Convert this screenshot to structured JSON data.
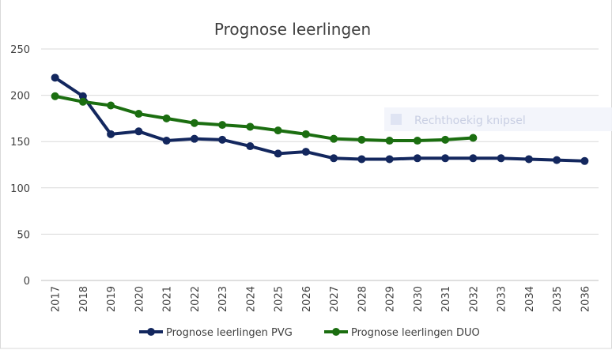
{
  "chart_data": {
    "type": "line",
    "title": "Prognose leerlingen",
    "xlabel": "",
    "ylabel": "",
    "categories": [
      "2017",
      "2018",
      "2019",
      "2020",
      "2021",
      "2022",
      "2023",
      "2024",
      "2025",
      "2026",
      "2027",
      "2028",
      "2029",
      "2030",
      "2031",
      "2032",
      "2033",
      "2034",
      "2035",
      "2036"
    ],
    "ylim": [
      0,
      250
    ],
    "yticks": [
      0,
      50,
      100,
      150,
      200,
      250
    ],
    "grid": true,
    "legend_position": "bottom",
    "series": [
      {
        "name": "Prognose leerlingen PVG",
        "color": "#13275e",
        "values": [
          219,
          199,
          158,
          161,
          151,
          153,
          152,
          145,
          137,
          139,
          132,
          131,
          131,
          132,
          132,
          132,
          132,
          131,
          130,
          129
        ]
      },
      {
        "name": "Prognose leerlingen DUO",
        "color": "#1b6e10",
        "values": [
          199,
          193,
          189,
          180,
          175,
          170,
          168,
          166,
          162,
          158,
          153,
          152,
          151,
          151,
          152,
          154,
          null,
          null,
          null,
          null
        ]
      }
    ]
  },
  "overlay": {
    "label": "Rechthoekig knipsel"
  }
}
